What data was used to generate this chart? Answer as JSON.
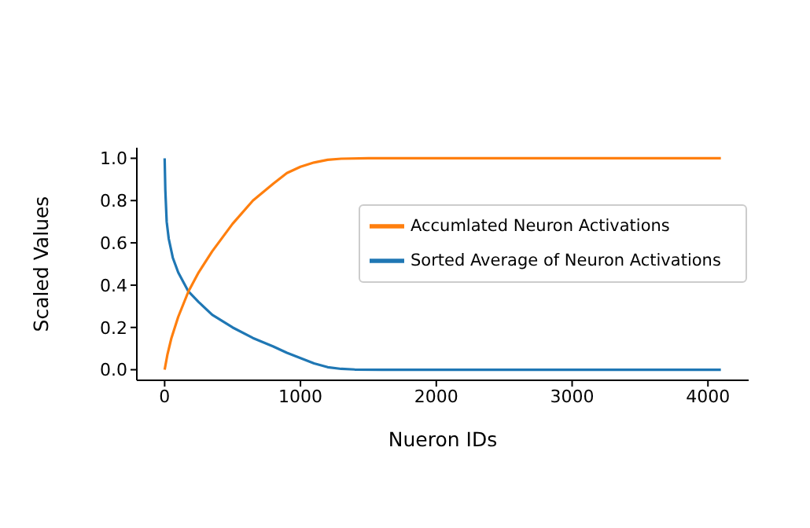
{
  "chart_data": {
    "type": "line",
    "xlabel": "Nueron IDs",
    "ylabel": "Scaled Values",
    "xlim": [
      -204.75,
      4299.75
    ],
    "ylim": [
      -0.05,
      1.05
    ],
    "xticks": [
      0,
      1000,
      2000,
      3000,
      4000
    ],
    "yticks": [
      {
        "value": 0,
        "label": "0.0"
      },
      {
        "value": 0.2,
        "label": "0.2"
      },
      {
        "value": 0.4,
        "label": "0.4"
      },
      {
        "value": 0.6,
        "label": "0.6"
      },
      {
        "value": 0.8,
        "label": "0.8"
      },
      {
        "value": 1,
        "label": "1.0"
      }
    ],
    "grid": false,
    "legend": "right",
    "marker": "none",
    "line_style": "solid",
    "series": [
      {
        "name": "Sorted Average of Neuron Activations",
        "color": "#1f77b4",
        "x": [
          0,
          5,
          15,
          30,
          60,
          100,
          175,
          250,
          350,
          500,
          650,
          800,
          900,
          1000,
          1100,
          1200,
          1300,
          1400,
          1600,
          4095
        ],
        "values": [
          1.0,
          0.85,
          0.7,
          0.62,
          0.53,
          0.46,
          0.37,
          0.32,
          0.26,
          0.2,
          0.15,
          0.11,
          0.08,
          0.055,
          0.03,
          0.012,
          0.004,
          0.001,
          0,
          0
        ]
      },
      {
        "name": "Accumlated Neuron Activations",
        "color": "#ff7f0e",
        "x": [
          0,
          20,
          50,
          100,
          175,
          250,
          350,
          500,
          650,
          800,
          900,
          1000,
          1100,
          1200,
          1300,
          1500,
          4095
        ],
        "values": [
          0,
          0.07,
          0.15,
          0.25,
          0.37,
          0.46,
          0.56,
          0.69,
          0.8,
          0.88,
          0.93,
          0.96,
          0.98,
          0.993,
          0.998,
          1,
          1
        ]
      }
    ]
  }
}
